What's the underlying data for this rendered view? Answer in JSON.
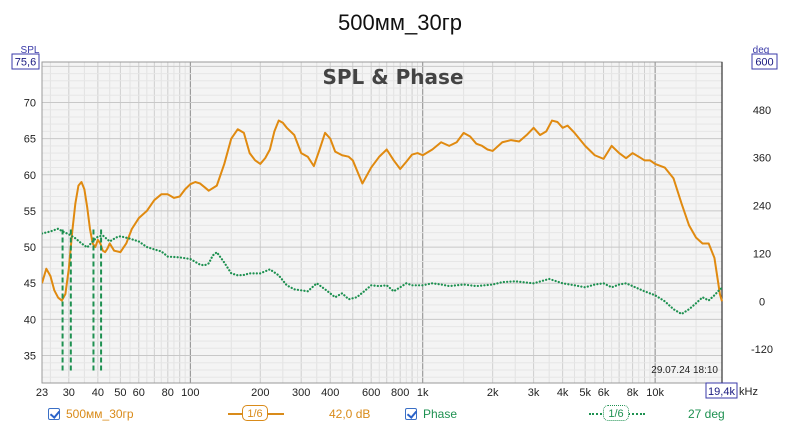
{
  "chart_data": {
    "type": "line",
    "title": "500мм_30гр",
    "subtitle": "SPL & Phase",
    "left_axis": {
      "label": "SPL",
      "top_value": "75,6",
      "ticks": [
        35,
        40,
        45,
        50,
        55,
        60,
        65,
        70
      ],
      "range": [
        31.2,
        75.6
      ]
    },
    "right_axis": {
      "label": "deg",
      "top_value": "600",
      "ticks": [
        -120,
        0,
        120,
        240,
        360,
        480
      ],
      "range": [
        -205,
        600
      ]
    },
    "x_axis": {
      "unit": "Hz",
      "end_label": "19,4k",
      "end_unit": "kHz",
      "range": [
        23,
        19400
      ],
      "tick_labels": [
        {
          "f": 23,
          "t": "23"
        },
        {
          "f": 30,
          "t": "30"
        },
        {
          "f": 40,
          "t": "40"
        },
        {
          "f": 50,
          "t": "50"
        },
        {
          "f": 60,
          "t": "60"
        },
        {
          "f": 80,
          "t": "80"
        },
        {
          "f": 100,
          "t": "100"
        },
        {
          "f": 200,
          "t": "200"
        },
        {
          "f": 300,
          "t": "300"
        },
        {
          "f": 400,
          "t": "400"
        },
        {
          "f": 600,
          "t": "600"
        },
        {
          "f": 800,
          "t": "800"
        },
        {
          "f": 1000,
          "t": "1k"
        },
        {
          "f": 2000,
          "t": "2k"
        },
        {
          "f": 3000,
          "t": "3k"
        },
        {
          "f": 4000,
          "t": "4k"
        },
        {
          "f": 5000,
          "t": "5k"
        },
        {
          "f": 6000,
          "t": "6k"
        },
        {
          "f": 8000,
          "t": "8k"
        },
        {
          "f": 10000,
          "t": "10k"
        }
      ]
    },
    "timestamp": "29.07.24 18:10",
    "series": [
      {
        "name": "500мм_30гр",
        "axis": "left",
        "color": "#e08a10",
        "points": [
          [
            23,
            45
          ],
          [
            24,
            47
          ],
          [
            25,
            46
          ],
          [
            26,
            44
          ],
          [
            27,
            43
          ],
          [
            28,
            42.6
          ],
          [
            29,
            43.5
          ],
          [
            30,
            47
          ],
          [
            31,
            52
          ],
          [
            32,
            56
          ],
          [
            33,
            58.5
          ],
          [
            34,
            59
          ],
          [
            35,
            58
          ],
          [
            36,
            55.5
          ],
          [
            37,
            52.5
          ],
          [
            38,
            50.5
          ],
          [
            39,
            50
          ],
          [
            40,
            51
          ],
          [
            41,
            50.5
          ],
          [
            42,
            49.5
          ],
          [
            43,
            49.3
          ],
          [
            44,
            49.8
          ],
          [
            45,
            50.5
          ],
          [
            47,
            49.5
          ],
          [
            50,
            49.3
          ],
          [
            53,
            50.5
          ],
          [
            56,
            52.5
          ],
          [
            60,
            54
          ],
          [
            65,
            55
          ],
          [
            70,
            56.5
          ],
          [
            75,
            57.3
          ],
          [
            80,
            57.3
          ],
          [
            85,
            56.8
          ],
          [
            90,
            57
          ],
          [
            95,
            58
          ],
          [
            100,
            58.7
          ],
          [
            105,
            59
          ],
          [
            110,
            58.8
          ],
          [
            115,
            58.3
          ],
          [
            120,
            57.8
          ],
          [
            130,
            58.5
          ],
          [
            140,
            61.5
          ],
          [
            150,
            65
          ],
          [
            160,
            66.3
          ],
          [
            170,
            65.8
          ],
          [
            180,
            63
          ],
          [
            190,
            62
          ],
          [
            200,
            61.5
          ],
          [
            210,
            62.3
          ],
          [
            220,
            63.5
          ],
          [
            230,
            66
          ],
          [
            240,
            67.5
          ],
          [
            250,
            67.2
          ],
          [
            260,
            66.5
          ],
          [
            280,
            65.5
          ],
          [
            300,
            63
          ],
          [
            320,
            62.5
          ],
          [
            340,
            61.2
          ],
          [
            360,
            63.5
          ],
          [
            380,
            65.8
          ],
          [
            400,
            65
          ],
          [
            420,
            63.2
          ],
          [
            450,
            62.7
          ],
          [
            480,
            62.5
          ],
          [
            500,
            62
          ],
          [
            550,
            58.8
          ],
          [
            600,
            61
          ],
          [
            650,
            62.5
          ],
          [
            700,
            63.5
          ],
          [
            750,
            62
          ],
          [
            800,
            60.8
          ],
          [
            850,
            61.8
          ],
          [
            900,
            62.8
          ],
          [
            950,
            63
          ],
          [
            1000,
            62.7
          ],
          [
            1100,
            63.5
          ],
          [
            1200,
            64.5
          ],
          [
            1300,
            64
          ],
          [
            1400,
            64.5
          ],
          [
            1500,
            65.8
          ],
          [
            1600,
            65.3
          ],
          [
            1700,
            64.3
          ],
          [
            1800,
            64
          ],
          [
            1900,
            63.5
          ],
          [
            2000,
            63.3
          ],
          [
            2200,
            64.5
          ],
          [
            2400,
            64.8
          ],
          [
            2600,
            64.6
          ],
          [
            2800,
            65.5
          ],
          [
            3000,
            66.5
          ],
          [
            3200,
            65.5
          ],
          [
            3400,
            66
          ],
          [
            3600,
            67.5
          ],
          [
            3800,
            67.3
          ],
          [
            4000,
            66.5
          ],
          [
            4200,
            66.8
          ],
          [
            4500,
            65.8
          ],
          [
            5000,
            64
          ],
          [
            5500,
            62.7
          ],
          [
            6000,
            62.2
          ],
          [
            6500,
            64
          ],
          [
            7000,
            63
          ],
          [
            7500,
            62.3
          ],
          [
            8000,
            63
          ],
          [
            8500,
            62.5
          ],
          [
            9000,
            62
          ],
          [
            9500,
            62
          ],
          [
            10000,
            61.5
          ],
          [
            11000,
            61
          ],
          [
            12000,
            59.5
          ],
          [
            13000,
            56
          ],
          [
            14000,
            53
          ],
          [
            15000,
            51.3
          ],
          [
            16000,
            50.5
          ],
          [
            17000,
            50.5
          ],
          [
            18000,
            48.5
          ],
          [
            19000,
            43.5
          ],
          [
            19400,
            42.5
          ]
        ]
      },
      {
        "name": "Phase",
        "axis": "right",
        "color": "#1e9151",
        "dotted": true,
        "points": [
          [
            23,
            170
          ],
          [
            25,
            175
          ],
          [
            27,
            182
          ],
          [
            28,
            176
          ],
          [
            30,
            168
          ],
          [
            32,
            158
          ],
          [
            34,
            145
          ],
          [
            36,
            135
          ],
          [
            38,
            150
          ],
          [
            40,
            162
          ],
          [
            42,
            165
          ],
          [
            45,
            150
          ],
          [
            48,
            160
          ],
          [
            50,
            163
          ],
          [
            55,
            157
          ],
          [
            60,
            150
          ],
          [
            65,
            136
          ],
          [
            70,
            130
          ],
          [
            75,
            125
          ],
          [
            80,
            112
          ],
          [
            90,
            110
          ],
          [
            100,
            106
          ],
          [
            110,
            92
          ],
          [
            115,
            90
          ],
          [
            120,
            95
          ],
          [
            125,
            115
          ],
          [
            130,
            123
          ],
          [
            140,
            97
          ],
          [
            150,
            70
          ],
          [
            160,
            65
          ],
          [
            170,
            66
          ],
          [
            180,
            70
          ],
          [
            200,
            70
          ],
          [
            220,
            80
          ],
          [
            240,
            65
          ],
          [
            260,
            40
          ],
          [
            280,
            30
          ],
          [
            320,
            25
          ],
          [
            350,
            45
          ],
          [
            380,
            30
          ],
          [
            420,
            10
          ],
          [
            450,
            20
          ],
          [
            480,
            5
          ],
          [
            520,
            10
          ],
          [
            560,
            25
          ],
          [
            600,
            40
          ],
          [
            650,
            38
          ],
          [
            700,
            40
          ],
          [
            750,
            25
          ],
          [
            800,
            35
          ],
          [
            850,
            45
          ],
          [
            900,
            40
          ],
          [
            1000,
            40
          ],
          [
            1100,
            45
          ],
          [
            1200,
            42
          ],
          [
            1300,
            38
          ],
          [
            1500,
            42
          ],
          [
            1700,
            38
          ],
          [
            2000,
            42
          ],
          [
            2200,
            48
          ],
          [
            2500,
            50
          ],
          [
            3000,
            45
          ],
          [
            3500,
            56
          ],
          [
            4000,
            45
          ],
          [
            4500,
            40
          ],
          [
            5000,
            35
          ],
          [
            5500,
            42
          ],
          [
            6000,
            45
          ],
          [
            6500,
            35
          ],
          [
            7000,
            42
          ],
          [
            7500,
            45
          ],
          [
            8000,
            38
          ],
          [
            9000,
            25
          ],
          [
            10000,
            15
          ],
          [
            11000,
            0
          ],
          [
            12000,
            -20
          ],
          [
            13000,
            -32
          ],
          [
            14000,
            -20
          ],
          [
            15000,
            -5
          ],
          [
            16000,
            10
          ],
          [
            17000,
            2
          ],
          [
            18000,
            15
          ],
          [
            19000,
            30
          ],
          [
            19400,
            33
          ]
        ]
      }
    ],
    "phase_spikes": [
      {
        "f": 28.2,
        "from": 180,
        "to": -175
      },
      {
        "f": 30.6,
        "from": 180,
        "to": -175
      },
      {
        "f": 38.3,
        "from": 180,
        "to": -175
      },
      {
        "f": 41.3,
        "from": 180,
        "to": -175
      }
    ]
  },
  "legend": {
    "series1": {
      "name": "500мм_30гр",
      "smoothing": "1/6",
      "level": "42,0 dB"
    },
    "series2": {
      "name": "Phase",
      "smoothing": "1/6",
      "level": "27 deg"
    }
  },
  "colors": {
    "spl": "#e08a10",
    "phase": "#1e9151",
    "axis_box": "#3a3aa8"
  }
}
